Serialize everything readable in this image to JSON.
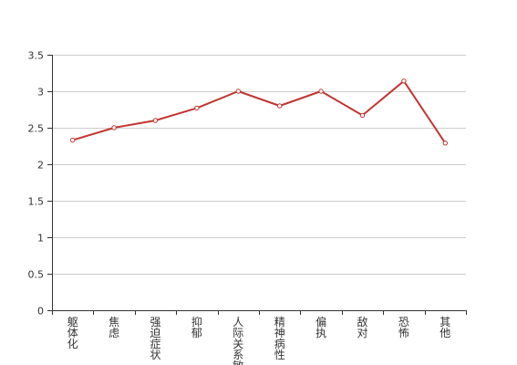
{
  "chart_data": {
    "type": "line",
    "categories": [
      "躯体化",
      "焦虑",
      "强迫症状",
      "抑郁",
      "人际关系敏感",
      "精神病性",
      "偏执",
      "敌对",
      "恐怖",
      "其他"
    ],
    "series": [
      {
        "values": [
          2.33,
          2.5,
          2.6,
          2.77,
          3.0,
          2.8,
          3.0,
          2.67,
          3.14,
          2.29
        ]
      }
    ],
    "ylim": [
      0,
      3.5
    ],
    "yticks": [
      "0",
      "0.5",
      "1",
      "1.5",
      "2",
      "2.5",
      "3",
      "3.5"
    ],
    "grid": true,
    "legend": "none",
    "colors": {
      "line": "#c23531",
      "axis": "#333333",
      "grid": "#cccccc",
      "marker_fill": "#ffffff"
    }
  }
}
